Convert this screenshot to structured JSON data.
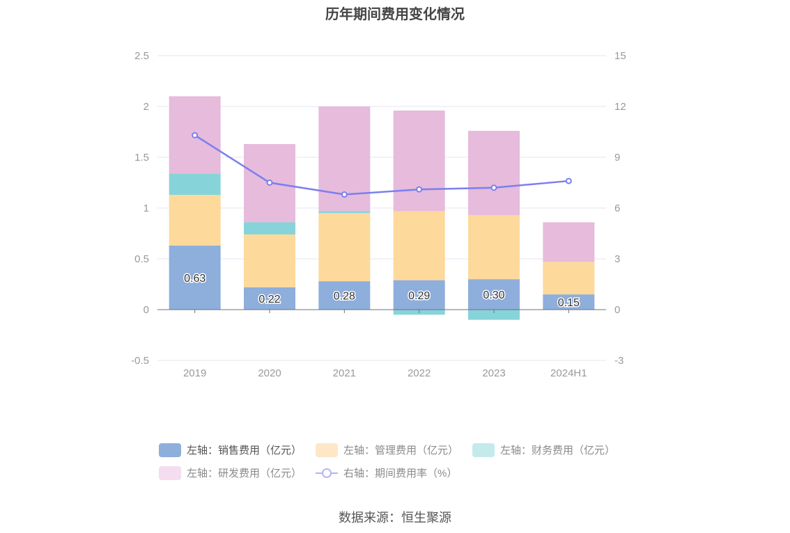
{
  "title": "历年期间费用变化情况",
  "source": "数据来源：恒生聚源",
  "colors": {
    "sales": "#8eaedc",
    "admin": "#fdd99b",
    "finance": "#86d4d9",
    "rnd": "#e6bbdc",
    "rate": "#7b7fef",
    "grid": "#e6e6f0",
    "axis_text": "#999999"
  },
  "legend": [
    {
      "label": "左轴：销售费用（亿元）",
      "color": "#8eaedc",
      "kind": "box",
      "active": true
    },
    {
      "label": "左轴：管理费用（亿元）",
      "color": "#fde7c6",
      "kind": "box",
      "active": false
    },
    {
      "label": "左轴：财务费用（亿元）",
      "color": "#c4eaec",
      "kind": "box",
      "active": false
    },
    {
      "label": "左轴：研发费用（亿元）",
      "color": "#f3ddee",
      "kind": "box",
      "active": false
    },
    {
      "label": "右轴：期间费用率（%）",
      "color": "#b3b6f5",
      "kind": "line",
      "active": false
    }
  ],
  "chart_data": {
    "type": "bar",
    "categories": [
      "2019",
      "2020",
      "2021",
      "2022",
      "2023",
      "2024H1"
    ],
    "y_left": {
      "ticks": [
        "2.5",
        "2",
        "1.5",
        "1",
        "0.5",
        "0",
        "-0.5"
      ],
      "min": -0.5,
      "max": 2.5
    },
    "y_right": {
      "ticks": [
        "15",
        "12",
        "9",
        "6",
        "3",
        "0",
        "-3"
      ],
      "min": -3,
      "max": 15
    },
    "series": [
      {
        "name": "左轴：销售费用（亿元）",
        "axis": "left",
        "values": [
          0.63,
          0.22,
          0.28,
          0.29,
          0.3,
          0.15
        ],
        "labels": [
          "0.63",
          "0.22",
          "0.28",
          "0.29",
          "0.30",
          "0.15"
        ]
      },
      {
        "name": "左轴：管理费用（亿元）",
        "axis": "left",
        "values": [
          0.5,
          0.52,
          0.67,
          0.68,
          0.63,
          0.32
        ]
      },
      {
        "name": "左轴：财务费用（亿元）",
        "axis": "left",
        "values": [
          0.21,
          0.12,
          0.02,
          -0.05,
          -0.1,
          0.0
        ]
      },
      {
        "name": "左轴：研发费用（亿元）",
        "axis": "left",
        "values": [
          0.76,
          0.77,
          1.03,
          0.99,
          0.83,
          0.39
        ]
      },
      {
        "name": "右轴：期间费用率（%）",
        "axis": "right",
        "type": "line",
        "values": [
          10.3,
          7.5,
          6.8,
          7.1,
          7.2,
          7.6
        ]
      }
    ]
  }
}
